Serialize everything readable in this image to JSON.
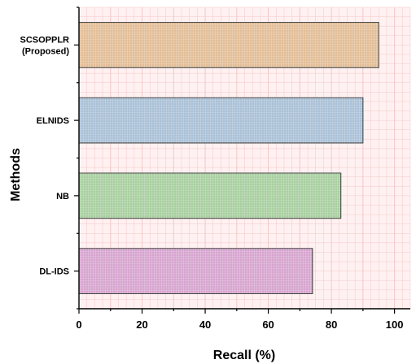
{
  "chart_data": {
    "type": "bar",
    "orientation": "horizontal",
    "title": "",
    "xlabel": "Recall (%)",
    "ylabel": "Methods",
    "xlim": [
      0,
      105
    ],
    "x_ticks": [
      0,
      20,
      40,
      60,
      80,
      100
    ],
    "grid": true,
    "categories": [
      {
        "lines": [
          "SCSOPPLR",
          "(Proposed)"
        ]
      },
      {
        "lines": [
          "ELNIDS"
        ]
      },
      {
        "lines": [
          "NB"
        ]
      },
      {
        "lines": [
          "DL-IDS"
        ]
      }
    ],
    "values": [
      95,
      90,
      83,
      74
    ],
    "bar_colors": [
      "#e2bd96",
      "#a9c0d6",
      "#a8cf9f",
      "#d6a4cf"
    ],
    "background_color": "#fff1f1",
    "grid_color": "#f3c8c8"
  }
}
